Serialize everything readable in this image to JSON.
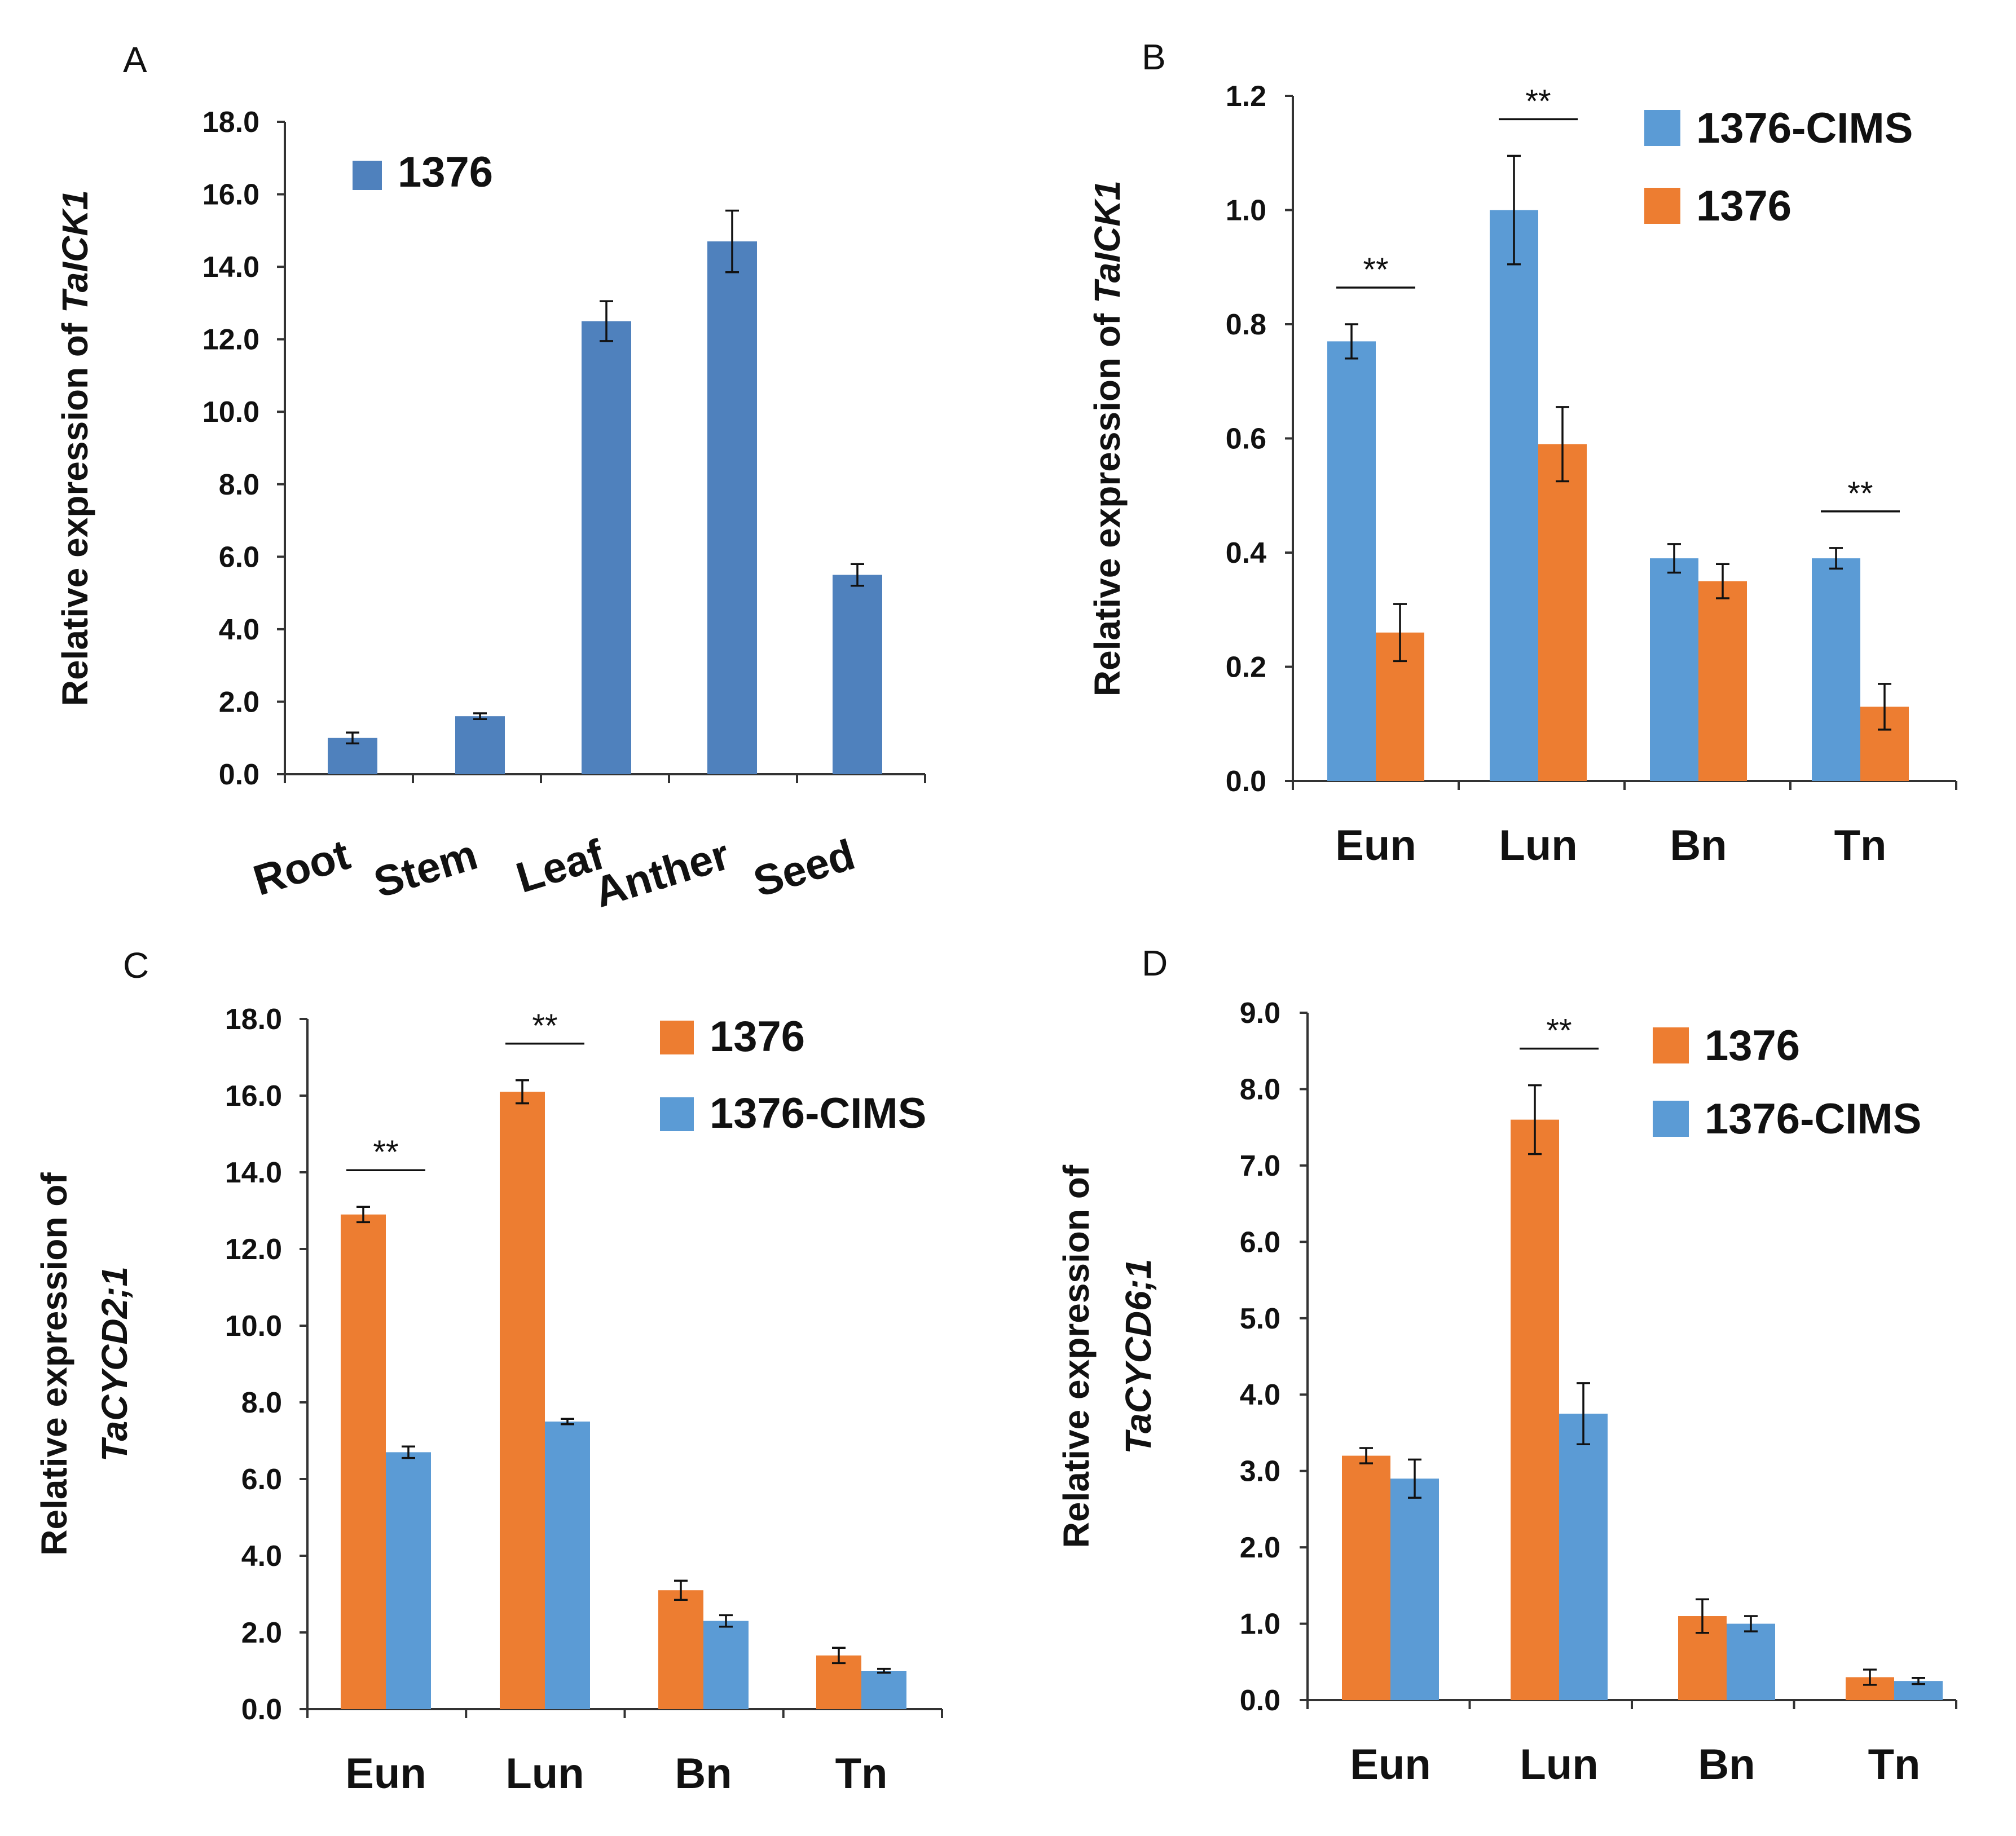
{
  "colors": {
    "panelA": "#4f81bd",
    "blue": "#5b9bd5",
    "orange": "#ed7d31"
  },
  "chart_data": [
    {
      "panel": "A",
      "type": "bar",
      "ylabel": "Relative expression of ",
      "ylabel_italic": "TaICK1",
      "ylabel_line2": "",
      "ylim": [
        0,
        18
      ],
      "ytick_labels": [
        "0.0",
        "2.0",
        "4.0",
        "6.0",
        "8.0",
        "10.0",
        "12.0",
        "14.0",
        "16.0",
        "18.0"
      ],
      "categories": [
        "Root",
        "Stem",
        "Leaf",
        "Anther",
        "Seed"
      ],
      "series": [
        {
          "name": "1376",
          "color": "#4f81bd",
          "values": [
            1.0,
            1.6,
            12.5,
            14.7,
            5.5
          ],
          "errors": [
            0.15,
            0.08,
            0.55,
            0.85,
            0.3
          ]
        }
      ],
      "legend": [
        {
          "label": "1376",
          "color": "#4f81bd"
        }
      ],
      "significance": []
    },
    {
      "panel": "B",
      "type": "bar",
      "ylabel": "Relative expression of ",
      "ylabel_italic": "TaICK1",
      "ylabel_line2": "",
      "ylim": [
        0,
        1.2
      ],
      "ytick_labels": [
        "0.0",
        "0.2",
        "0.4",
        "0.6",
        "0.8",
        "1.0",
        "1.2"
      ],
      "categories": [
        "Eun",
        "Lun",
        "Bn",
        "Tn"
      ],
      "series": [
        {
          "name": "1376-CIMS",
          "color": "#5b9bd5",
          "values": [
            0.77,
            1.0,
            0.39,
            0.39
          ],
          "errors": [
            0.03,
            0.095,
            0.025,
            0.018
          ]
        },
        {
          "name": "1376",
          "color": "#ed7d31",
          "values": [
            0.26,
            0.59,
            0.35,
            0.13
          ],
          "errors": [
            0.05,
            0.065,
            0.03,
            0.04
          ]
        }
      ],
      "legend": [
        {
          "label": "1376-CIMS",
          "color": "#5b9bd5"
        },
        {
          "label": "1376",
          "color": "#ed7d31"
        }
      ],
      "significance": [
        {
          "category": 0,
          "text": "**"
        },
        {
          "category": 1,
          "text": "**"
        },
        {
          "category": 3,
          "text": "**"
        }
      ]
    },
    {
      "panel": "C",
      "type": "bar",
      "ylabel": "Relative expression of",
      "ylabel_italic": "",
      "ylabel_line2": "TaCYCD2;1",
      "ylim": [
        0,
        18
      ],
      "ytick_labels": [
        "0.0",
        "2.0",
        "4.0",
        "6.0",
        "8.0",
        "10.0",
        "12.0",
        "14.0",
        "16.0",
        "18.0"
      ],
      "categories": [
        "Eun",
        "Lun",
        "Bn",
        "Tn"
      ],
      "series": [
        {
          "name": "1376",
          "color": "#ed7d31",
          "values": [
            12.9,
            16.1,
            3.1,
            1.4
          ],
          "errors": [
            0.2,
            0.3,
            0.25,
            0.2
          ]
        },
        {
          "name": "1376-CIMS",
          "color": "#5b9bd5",
          "values": [
            6.7,
            7.5,
            2.3,
            1.0
          ],
          "errors": [
            0.15,
            0.07,
            0.15,
            0.05
          ]
        }
      ],
      "legend": [
        {
          "label": "1376",
          "color": "#ed7d31"
        },
        {
          "label": "1376-CIMS",
          "color": "#5b9bd5"
        }
      ],
      "significance": [
        {
          "category": 0,
          "text": "**"
        },
        {
          "category": 1,
          "text": "**"
        }
      ]
    },
    {
      "panel": "D",
      "type": "bar",
      "ylabel": "Relative expression of",
      "ylabel_italic": "",
      "ylabel_line2": "TaCYCD6;1",
      "ylim": [
        0,
        9
      ],
      "ytick_labels": [
        "0.0",
        "1.0",
        "2.0",
        "3.0",
        "4.0",
        "5.0",
        "6.0",
        "7.0",
        "8.0",
        "9.0"
      ],
      "categories": [
        "Eun",
        "Lun",
        "Bn",
        "Tn"
      ],
      "series": [
        {
          "name": "1376",
          "color": "#ed7d31",
          "values": [
            3.2,
            7.6,
            1.1,
            0.3
          ],
          "errors": [
            0.1,
            0.45,
            0.22,
            0.1
          ]
        },
        {
          "name": "1376-CIMS",
          "color": "#5b9bd5",
          "values": [
            2.9,
            3.75,
            1.0,
            0.25
          ],
          "errors": [
            0.25,
            0.4,
            0.1,
            0.04
          ]
        }
      ],
      "legend": [
        {
          "label": "1376",
          "color": "#ed7d31"
        },
        {
          "label": "1376-CIMS",
          "color": "#5b9bd5"
        }
      ],
      "significance": [
        {
          "category": 1,
          "text": "**"
        }
      ]
    }
  ]
}
